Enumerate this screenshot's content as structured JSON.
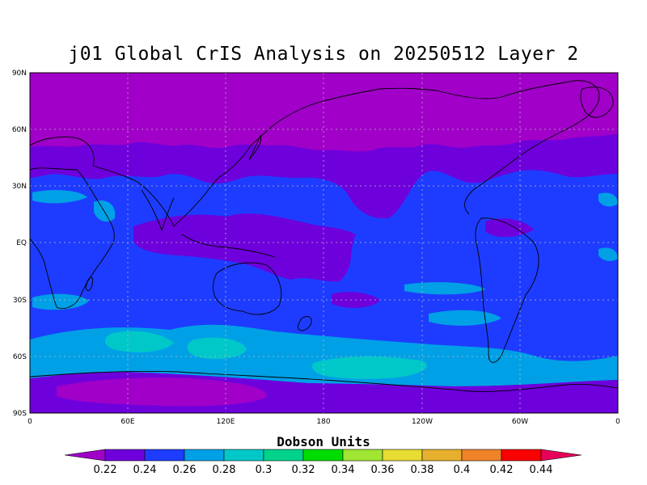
{
  "title": "j01 Global CrIS Analysis on 20250512 Layer 2",
  "map": {
    "lat_ticks": [
      "90N",
      "60N",
      "30N",
      "EQ",
      "30S",
      "60S",
      "90S"
    ],
    "lon_ticks": [
      "0",
      "60E",
      "120E",
      "180",
      "120W",
      "60W",
      "0"
    ],
    "grid": "dotted",
    "projection": "equirectangular",
    "lon_range": [
      0,
      360
    ],
    "lat_range": [
      -90,
      90
    ]
  },
  "colorbar": {
    "title": "Dobson Units",
    "labels": [
      "0.22",
      "0.24",
      "0.26",
      "0.28",
      "0.3",
      "0.32",
      "0.34",
      "0.36",
      "0.38",
      "0.4",
      "0.42",
      "0.44"
    ],
    "colors": [
      "#a000c8",
      "#6e00dc",
      "#1e3cff",
      "#00a0e6",
      "#00c8c8",
      "#00d28c",
      "#00dc00",
      "#a0e632",
      "#e6dc32",
      "#e6af2d",
      "#f08228",
      "#fa0000",
      "#e6005a"
    ]
  },
  "chart_data": {
    "type": "heatmap",
    "title": "j01 Global CrIS Analysis on 20250512 Layer 2",
    "variable_label": "Dobson Units",
    "contour_levels": [
      0.22,
      0.24,
      0.26,
      0.28,
      0.3,
      0.32,
      0.34,
      0.36,
      0.38,
      0.4,
      0.42,
      0.44
    ],
    "regions": [
      {
        "area": "north polar cap (60N-90N)",
        "value_range": [
          0.2,
          0.22
        ]
      },
      {
        "area": "northern mid-latitudes band (~30N-50N)",
        "value_range": [
          0.22,
          0.24
        ]
      },
      {
        "area": "tropical western Pacific / Indian Ocean (EQ-20N)",
        "value_range": [
          0.22,
          0.24
        ]
      },
      {
        "area": "subtropics and southern mid-latitudes",
        "value_range": [
          0.24,
          0.26
        ]
      },
      {
        "area": "southern ocean band (~50S-65S)",
        "value_range": [
          0.26,
          0.3
        ]
      },
      {
        "area": "Antarctica interior (~75S)",
        "value_range": [
          0.2,
          0.22
        ]
      }
    ]
  }
}
